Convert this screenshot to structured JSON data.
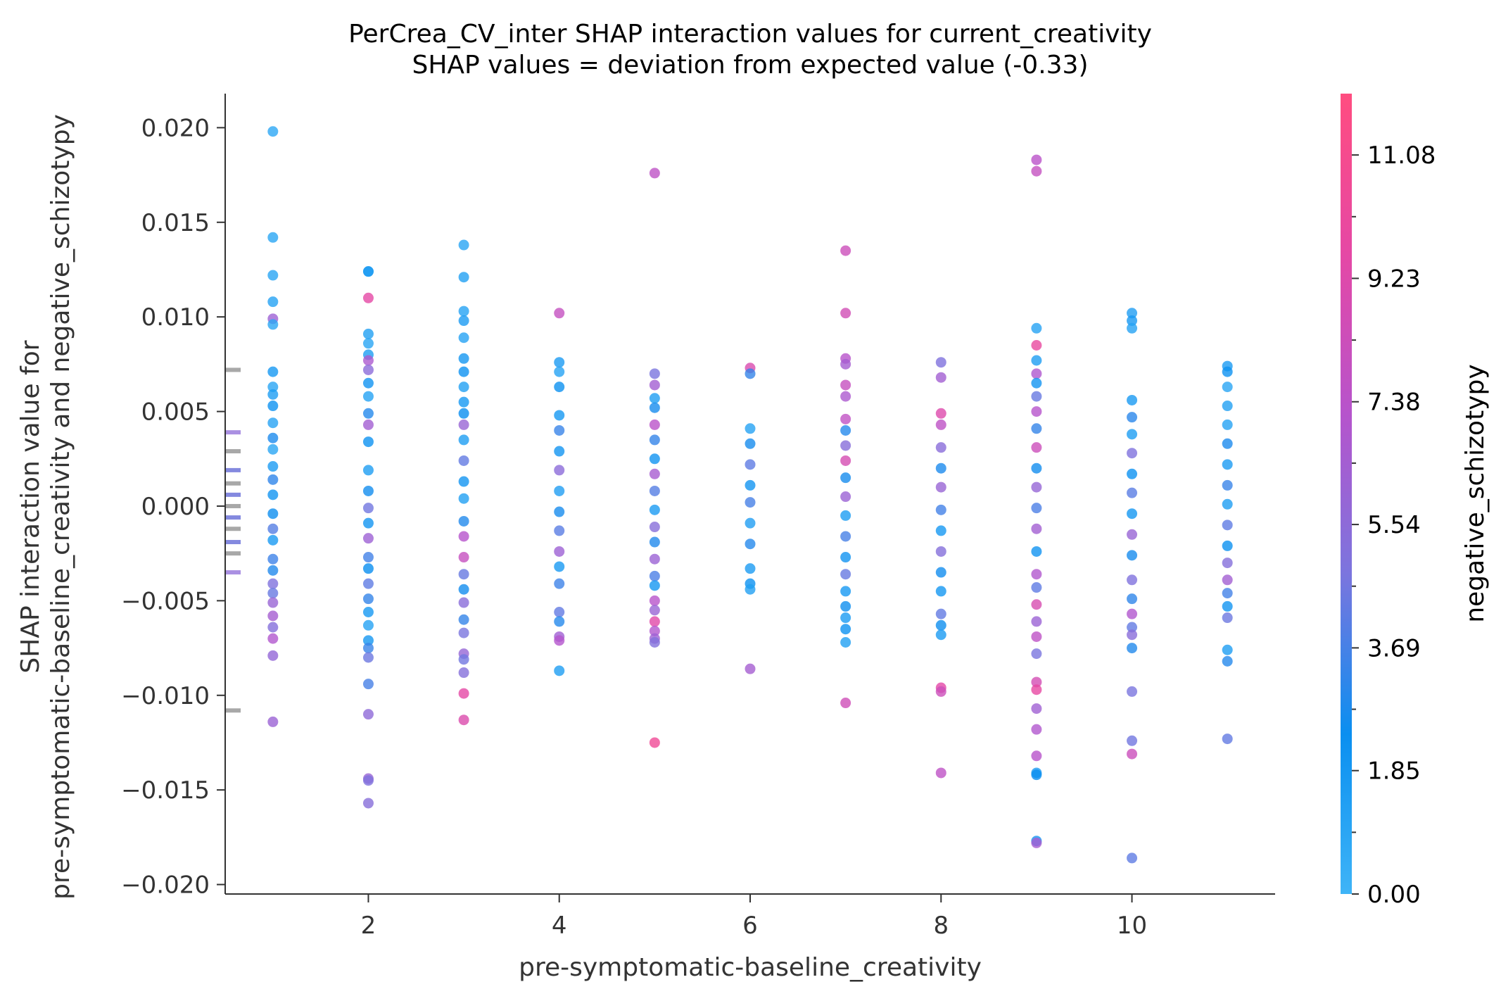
{
  "chart_data": {
    "type": "scatter",
    "title": "PerCrea_CV_inter SHAP interaction values for current_creativity",
    "subtitle": "SHAP values = deviation from expected value (-0.33)",
    "xlabel": "pre-symptomatic-baseline_creativity",
    "ylabel": "SHAP interaction value for\npre-symptomatic-baseline_creativity and negative_schizotypy",
    "xlim": [
      0.5,
      11.5
    ],
    "ylim": [
      -0.0205,
      0.0218
    ],
    "x_ticks": [
      2,
      4,
      6,
      8,
      10
    ],
    "y_ticks": [
      0.02,
      0.015,
      0.01,
      0.005,
      0.0,
      -0.005,
      -0.01,
      -0.015,
      -0.02
    ],
    "y_tick_labels": [
      "0.020",
      "0.015",
      "0.010",
      "0.005",
      "0.000",
      "−0.005",
      "−0.010",
      "−0.015",
      "−0.020"
    ],
    "x_tick_labels": [
      "2",
      "4",
      "6",
      "8",
      "10"
    ],
    "grid": false,
    "colorbar": {
      "label": "negative_schizotypy",
      "min": 0.0,
      "max": 12.0,
      "ticks": [
        0.0,
        1.85,
        3.69,
        5.54,
        7.38,
        9.23,
        11.08
      ],
      "tick_labels": [
        "0.00",
        "1.85",
        "3.69",
        "5.54",
        "7.38",
        "9.23",
        "11.08"
      ],
      "colormap": [
        "#3fb4f7",
        "#0a8ff0",
        "#7b75de",
        "#b654cc",
        "#e548a5",
        "#ff4d80"
      ]
    },
    "histogram": [
      {
        "y": 0.0072,
        "color": "#999999"
      },
      {
        "y": 0.0039,
        "color": "#9b7ddd"
      },
      {
        "y": 0.0029,
        "color": "#999999"
      },
      {
        "y": 0.0019,
        "color": "#6f74d9"
      },
      {
        "y": 0.0012,
        "color": "#999999"
      },
      {
        "y": 0.0006,
        "color": "#6f74d9"
      },
      {
        "y": 0.0,
        "color": "#999999"
      },
      {
        "y": -0.0006,
        "color": "#6f74d9"
      },
      {
        "y": -0.0012,
        "color": "#999999"
      },
      {
        "y": -0.0019,
        "color": "#6f74d9"
      },
      {
        "y": -0.0025,
        "color": "#999999"
      },
      {
        "y": -0.0035,
        "color": "#9b7ddd"
      },
      {
        "y": -0.0108,
        "color": "#999999"
      }
    ],
    "series": [
      {
        "x": 1,
        "points": [
          [
            0.0198,
            0.8
          ],
          [
            0.0142,
            0.9
          ],
          [
            0.0122,
            1.0
          ],
          [
            0.0108,
            1.2
          ],
          [
            0.0099,
            6.2
          ],
          [
            0.0096,
            0.9
          ],
          [
            0.0071,
            1.8
          ],
          [
            0.0063,
            1.0
          ],
          [
            0.0059,
            1.5
          ],
          [
            0.0053,
            2.2
          ],
          [
            0.0044,
            1.1
          ],
          [
            0.0036,
            2.8
          ],
          [
            0.003,
            0.9
          ],
          [
            0.0021,
            1.6
          ],
          [
            0.0014,
            3.2
          ],
          [
            0.0006,
            2.0
          ],
          [
            -0.0004,
            2.5
          ],
          [
            -0.0012,
            4.0
          ],
          [
            -0.0018,
            1.7
          ],
          [
            -0.0028,
            3.5
          ],
          [
            -0.0034,
            2.9
          ],
          [
            -0.0041,
            5.0
          ],
          [
            -0.0046,
            4.4
          ],
          [
            -0.0051,
            6.0
          ],
          [
            -0.0058,
            6.5
          ],
          [
            -0.0064,
            5.2
          ],
          [
            -0.007,
            7.0
          ],
          [
            -0.0079,
            5.8
          ],
          [
            -0.0114,
            6.1
          ]
        ]
      },
      {
        "x": 2,
        "points": [
          [
            0.0124,
            1.1
          ],
          [
            0.0124,
            1.7
          ],
          [
            0.011,
            9.6
          ],
          [
            0.0091,
            1.3
          ],
          [
            0.0086,
            1.0
          ],
          [
            0.008,
            1.5
          ],
          [
            0.0077,
            6.8
          ],
          [
            0.0072,
            5.5
          ],
          [
            0.0065,
            2.1
          ],
          [
            0.0058,
            1.2
          ],
          [
            0.0049,
            3.0
          ],
          [
            0.0043,
            6.4
          ],
          [
            0.0034,
            2.2
          ],
          [
            0.0019,
            1.5
          ],
          [
            0.0008,
            2.6
          ],
          [
            -0.0001,
            4.6
          ],
          [
            -0.0009,
            2.0
          ],
          [
            -0.0017,
            6.2
          ],
          [
            -0.0027,
            3.6
          ],
          [
            -0.0033,
            2.4
          ],
          [
            -0.0041,
            4.2
          ],
          [
            -0.0049,
            3.3
          ],
          [
            -0.0056,
            1.8
          ],
          [
            -0.0063,
            1.2
          ],
          [
            -0.0071,
            1.9
          ],
          [
            -0.0075,
            3.4
          ],
          [
            -0.008,
            4.5
          ],
          [
            -0.0094,
            3.7
          ],
          [
            -0.011,
            5.6
          ],
          [
            -0.0144,
            6.0
          ],
          [
            -0.0145,
            5.0
          ],
          [
            -0.0157,
            5.3
          ]
        ]
      },
      {
        "x": 3,
        "points": [
          [
            0.0138,
            1.0
          ],
          [
            0.0121,
            1.3
          ],
          [
            0.0103,
            1.2
          ],
          [
            0.0098,
            1.6
          ],
          [
            0.0089,
            1.2
          ],
          [
            0.0078,
            1.9
          ],
          [
            0.0071,
            2.2
          ],
          [
            0.0063,
            1.3
          ],
          [
            0.0055,
            1.8
          ],
          [
            0.0049,
            2.4
          ],
          [
            0.0043,
            6.0
          ],
          [
            0.0035,
            1.5
          ],
          [
            0.0024,
            4.3
          ],
          [
            0.0013,
            2.0
          ],
          [
            0.0004,
            1.3
          ],
          [
            -0.0008,
            2.9
          ],
          [
            -0.0016,
            7.2
          ],
          [
            -0.0027,
            8.0
          ],
          [
            -0.0036,
            4.4
          ],
          [
            -0.0044,
            2.6
          ],
          [
            -0.0051,
            5.4
          ],
          [
            -0.006,
            3.3
          ],
          [
            -0.0067,
            4.8
          ],
          [
            -0.0078,
            5.9
          ],
          [
            -0.0081,
            4.6
          ],
          [
            -0.0088,
            5.2
          ],
          [
            -0.0099,
            9.6
          ],
          [
            -0.0113,
            9.1
          ]
        ]
      },
      {
        "x": 4,
        "points": [
          [
            0.0102,
            7.9
          ],
          [
            0.0076,
            1.6
          ],
          [
            0.0071,
            1.2
          ],
          [
            0.0063,
            2.3
          ],
          [
            0.0048,
            1.8
          ],
          [
            0.004,
            3.4
          ],
          [
            0.0029,
            2.0
          ],
          [
            0.0019,
            5.5
          ],
          [
            0.0008,
            1.4
          ],
          [
            -0.0003,
            2.7
          ],
          [
            -0.0013,
            4.1
          ],
          [
            -0.0024,
            6.2
          ],
          [
            -0.0032,
            1.7
          ],
          [
            -0.0041,
            3.5
          ],
          [
            -0.0056,
            4.3
          ],
          [
            -0.0061,
            3.0
          ],
          [
            -0.0069,
            6.3
          ],
          [
            -0.0071,
            7.1
          ],
          [
            -0.0087,
            1.5
          ]
        ]
      },
      {
        "x": 5,
        "points": [
          [
            0.0176,
            7.6
          ],
          [
            0.007,
            4.8
          ],
          [
            0.0064,
            6.4
          ],
          [
            0.0057,
            1.5
          ],
          [
            0.0052,
            2.7
          ],
          [
            0.0043,
            7.4
          ],
          [
            0.0035,
            3.3
          ],
          [
            0.0025,
            2.1
          ],
          [
            0.0017,
            6.6
          ],
          [
            0.0008,
            4.0
          ],
          [
            -0.0002,
            1.6
          ],
          [
            -0.0011,
            5.3
          ],
          [
            -0.0019,
            2.9
          ],
          [
            -0.0028,
            6.1
          ],
          [
            -0.0037,
            3.8
          ],
          [
            -0.0042,
            1.9
          ],
          [
            -0.005,
            7.3
          ],
          [
            -0.0055,
            6.0
          ],
          [
            -0.0061,
            9.4
          ],
          [
            -0.0066,
            7.0
          ],
          [
            -0.007,
            6.2
          ],
          [
            -0.0072,
            5.1
          ],
          [
            -0.0125,
            10.6
          ]
        ]
      },
      {
        "x": 6,
        "points": [
          [
            0.0073,
            9.0
          ],
          [
            0.007,
            3.3
          ],
          [
            0.0041,
            1.2
          ],
          [
            0.0033,
            2.7
          ],
          [
            0.0022,
            4.2
          ],
          [
            0.0011,
            2.0
          ],
          [
            0.0002,
            3.7
          ],
          [
            -0.0009,
            1.4
          ],
          [
            -0.002,
            3.0
          ],
          [
            -0.0033,
            1.6
          ],
          [
            -0.0041,
            2.2
          ],
          [
            -0.0044,
            1.3
          ],
          [
            -0.0086,
            6.5
          ]
        ]
      },
      {
        "x": 7,
        "points": [
          [
            0.0135,
            8.3
          ],
          [
            0.0102,
            8.6
          ],
          [
            0.0078,
            7.3
          ],
          [
            0.0075,
            6.5
          ],
          [
            0.0064,
            8.0
          ],
          [
            0.0058,
            6.8
          ],
          [
            0.0046,
            7.7
          ],
          [
            0.004,
            3.0
          ],
          [
            0.0032,
            5.3
          ],
          [
            0.0024,
            8.8
          ],
          [
            0.0015,
            2.7
          ],
          [
            0.0005,
            6.1
          ],
          [
            -0.0005,
            1.5
          ],
          [
            -0.0016,
            3.7
          ],
          [
            -0.0027,
            2.1
          ],
          [
            -0.0036,
            4.4
          ],
          [
            -0.0045,
            1.8
          ],
          [
            -0.0053,
            2.5
          ],
          [
            -0.0059,
            1.6
          ],
          [
            -0.0065,
            2.2
          ],
          [
            -0.0072,
            1.3
          ],
          [
            -0.0104,
            8.4
          ]
        ]
      },
      {
        "x": 8,
        "points": [
          [
            0.0076,
            5.0
          ],
          [
            0.0068,
            6.4
          ],
          [
            0.0049,
            9.2
          ],
          [
            0.0043,
            7.6
          ],
          [
            0.0031,
            5.4
          ],
          [
            0.002,
            2.8
          ],
          [
            0.001,
            6.0
          ],
          [
            -0.0002,
            3.6
          ],
          [
            -0.0013,
            1.8
          ],
          [
            -0.0024,
            5.2
          ],
          [
            -0.0035,
            2.6
          ],
          [
            -0.0045,
            1.9
          ],
          [
            -0.0057,
            4.3
          ],
          [
            -0.0063,
            2.5
          ],
          [
            -0.0068,
            1.6
          ],
          [
            -0.0096,
            9.5
          ],
          [
            -0.0098,
            8.3
          ],
          [
            -0.0141,
            7.6
          ]
        ]
      },
      {
        "x": 9,
        "points": [
          [
            0.0183,
            7.4
          ],
          [
            0.0177,
            7.9
          ],
          [
            0.0094,
            1.2
          ],
          [
            0.0085,
            10.0
          ],
          [
            0.0077,
            1.5
          ],
          [
            0.007,
            6.9
          ],
          [
            0.0065,
            2.0
          ],
          [
            0.0058,
            4.4
          ],
          [
            0.005,
            7.2
          ],
          [
            0.0041,
            3.3
          ],
          [
            0.0031,
            8.3
          ],
          [
            0.002,
            2.6
          ],
          [
            0.001,
            5.9
          ],
          [
            -0.0001,
            3.8
          ],
          [
            -0.0012,
            6.4
          ],
          [
            -0.0024,
            2.1
          ],
          [
            -0.0036,
            7.0
          ],
          [
            -0.0043,
            4.2
          ],
          [
            -0.0052,
            8.9
          ],
          [
            -0.0061,
            6.1
          ],
          [
            -0.0069,
            7.6
          ],
          [
            -0.0078,
            4.8
          ],
          [
            -0.0093,
            8.7
          ],
          [
            -0.0097,
            9.8
          ],
          [
            -0.0107,
            6.3
          ],
          [
            -0.0118,
            7.0
          ],
          [
            -0.0132,
            7.3
          ],
          [
            -0.0141,
            1.6
          ],
          [
            -0.0142,
            2.4
          ],
          [
            -0.0177,
            2.0
          ],
          [
            -0.0178,
            6.6
          ]
        ]
      },
      {
        "x": 10,
        "points": [
          [
            0.0102,
            1.4
          ],
          [
            0.0098,
            1.8
          ],
          [
            0.0094,
            1.2
          ],
          [
            0.0056,
            1.7
          ],
          [
            0.0047,
            3.1
          ],
          [
            0.0038,
            1.5
          ],
          [
            0.0028,
            5.0
          ],
          [
            0.0017,
            2.2
          ],
          [
            0.0007,
            4.1
          ],
          [
            -0.0004,
            1.9
          ],
          [
            -0.0015,
            6.0
          ],
          [
            -0.0026,
            2.7
          ],
          [
            -0.0039,
            5.0
          ],
          [
            -0.0049,
            3.2
          ],
          [
            -0.0057,
            7.0
          ],
          [
            -0.0064,
            4.3
          ],
          [
            -0.0068,
            5.4
          ],
          [
            -0.0075,
            2.9
          ],
          [
            -0.0098,
            4.8
          ],
          [
            -0.0124,
            4.6
          ],
          [
            -0.0131,
            8.2
          ],
          [
            -0.0186,
            4.2
          ]
        ]
      },
      {
        "x": 11,
        "points": [
          [
            0.0074,
            1.6
          ],
          [
            0.0071,
            2.2
          ],
          [
            0.0063,
            1.0
          ],
          [
            0.0053,
            1.3
          ],
          [
            0.0043,
            1.2
          ],
          [
            0.0033,
            2.8
          ],
          [
            0.0022,
            1.6
          ],
          [
            0.0011,
            3.4
          ],
          [
            0.0001,
            1.5
          ],
          [
            -0.001,
            4.2
          ],
          [
            -0.0021,
            2.3
          ],
          [
            -0.003,
            5.2
          ],
          [
            -0.0039,
            6.4
          ],
          [
            -0.0046,
            3.6
          ],
          [
            -0.0053,
            2.0
          ],
          [
            -0.0059,
            4.5
          ],
          [
            -0.0076,
            1.5
          ],
          [
            -0.0082,
            3.0
          ],
          [
            -0.0123,
            4.3
          ]
        ]
      }
    ]
  }
}
